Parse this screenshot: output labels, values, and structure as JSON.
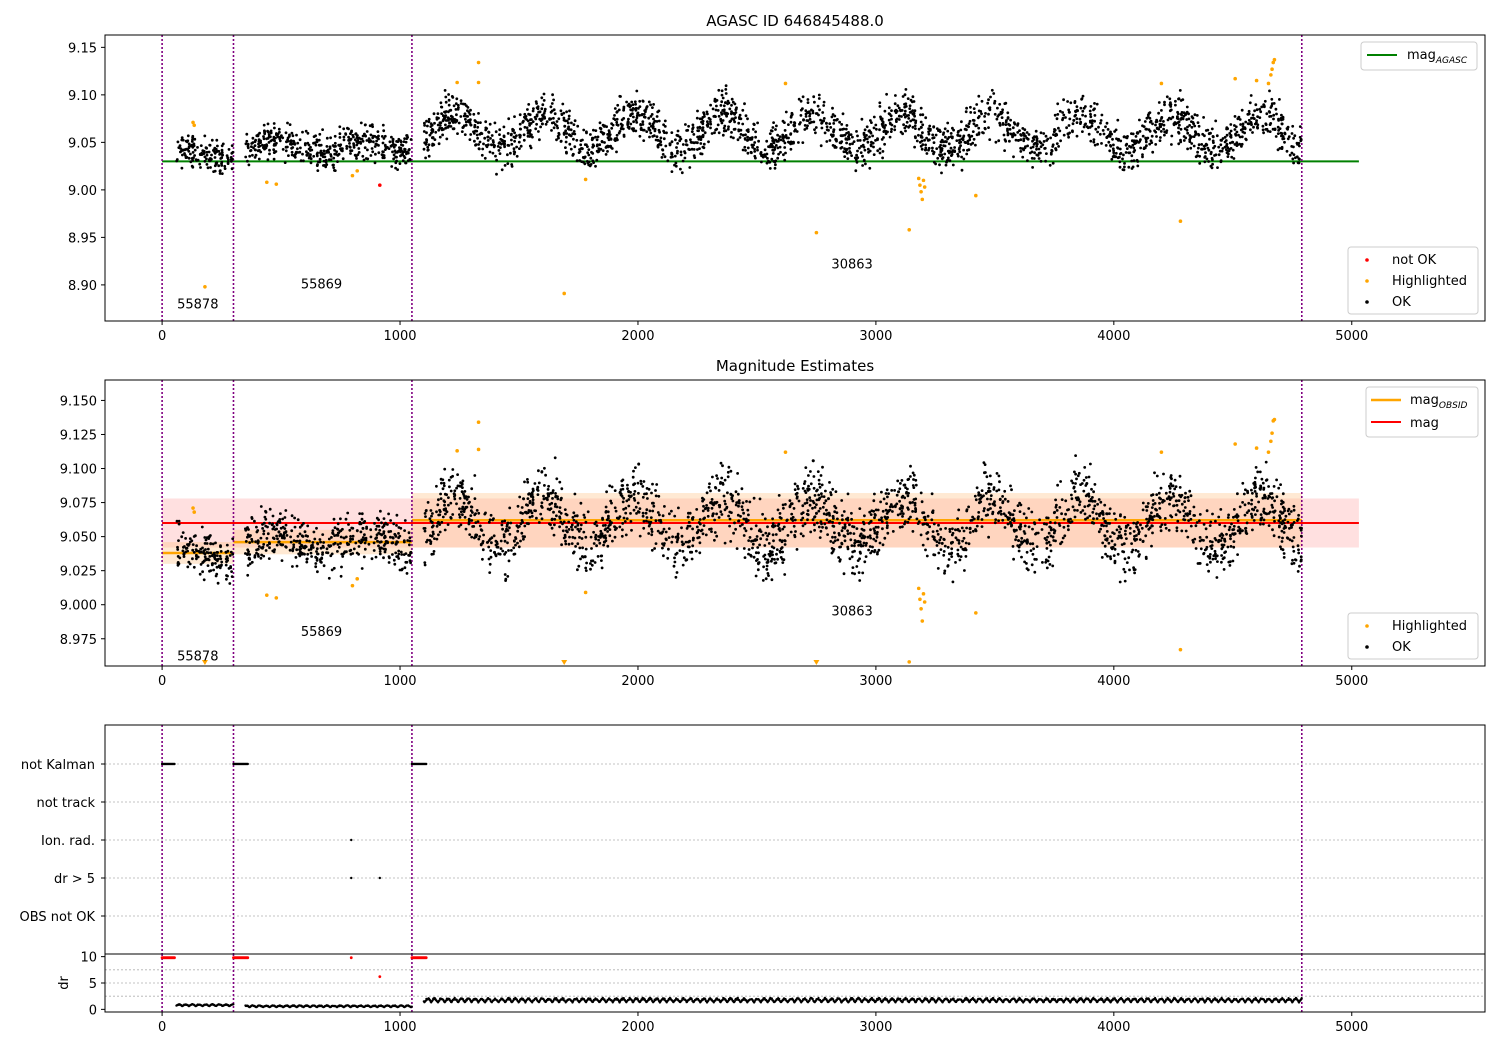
{
  "colors": {
    "ok": "#000000",
    "highlight": "#ffa500",
    "notok": "#ff0000",
    "agasc_line": "#008000",
    "mag_line": "#ff0000",
    "obsid_line": "#ffa500",
    "obs_boundary": "#800080",
    "band_red": "#ff9999",
    "band_orange": "#ffc080"
  },
  "chart_data": [
    {
      "type": "scatter",
      "title": "AGASC ID 646845488.0",
      "xlim": [
        -240,
        5560
      ],
      "ylim": [
        8.862,
        9.163
      ],
      "xticks": [
        "0",
        "1000",
        "2000",
        "3000",
        "4000",
        "5000"
      ],
      "yticks": [
        "8.90",
        "8.95",
        "9.00",
        "9.05",
        "9.10",
        "9.15"
      ],
      "grid": false,
      "legends": [
        {
          "placement": "top-right",
          "entries": [
            "mag_AGASC"
          ],
          "entry_main": "mag",
          "entry_sub": "AGASC"
        },
        {
          "placement": "lower-right",
          "entries": [
            "not OK",
            "Highlighted",
            "OK"
          ]
        }
      ],
      "mag_agasc": 9.03,
      "obs_boundaries": [
        0,
        300,
        1050,
        4790
      ],
      "obs_labels": [
        {
          "text": "55878",
          "x": 150,
          "y": 8.875
        },
        {
          "text": "55869",
          "x": 670,
          "y": 8.896
        },
        {
          "text": "30863",
          "x": 2900,
          "y": 8.917
        }
      ],
      "ok_segments": [
        {
          "x": [
            60,
            300
          ],
          "level": 9.037,
          "noise": 0.008,
          "wave": 0.004
        },
        {
          "x": [
            350,
            1050
          ],
          "level": 9.046,
          "noise": 0.009,
          "wave": 0.006
        },
        {
          "x": [
            1100,
            4790
          ],
          "level": 9.061,
          "noise": 0.012,
          "wave": 0.018
        }
      ],
      "highlighted": [
        {
          "x": 130,
          "y": 9.071
        },
        {
          "x": 135,
          "y": 9.068
        },
        {
          "x": 180,
          "y": 8.898
        },
        {
          "x": 440,
          "y": 9.008
        },
        {
          "x": 480,
          "y": 9.006
        },
        {
          "x": 800,
          "y": 9.015
        },
        {
          "x": 820,
          "y": 9.02
        },
        {
          "x": 1240,
          "y": 9.113
        },
        {
          "x": 1330,
          "y": 9.134
        },
        {
          "x": 1330,
          "y": 9.113
        },
        {
          "x": 1690,
          "y": 8.891
        },
        {
          "x": 1780,
          "y": 9.011
        },
        {
          "x": 2620,
          "y": 9.112
        },
        {
          "x": 2750,
          "y": 8.955
        },
        {
          "x": 3140,
          "y": 8.958
        },
        {
          "x": 3180,
          "y": 9.012
        },
        {
          "x": 3185,
          "y": 9.005
        },
        {
          "x": 3190,
          "y": 8.998
        },
        {
          "x": 3195,
          "y": 8.99
        },
        {
          "x": 3200,
          "y": 9.01
        },
        {
          "x": 3205,
          "y": 9.003
        },
        {
          "x": 3420,
          "y": 8.994
        },
        {
          "x": 4200,
          "y": 9.112
        },
        {
          "x": 4280,
          "y": 8.967
        },
        {
          "x": 4510,
          "y": 9.117
        },
        {
          "x": 4600,
          "y": 9.115
        },
        {
          "x": 4650,
          "y": 9.112
        },
        {
          "x": 4660,
          "y": 9.121
        },
        {
          "x": 4665,
          "y": 9.127
        },
        {
          "x": 4670,
          "y": 9.134
        },
        {
          "x": 4675,
          "y": 9.137
        }
      ],
      "not_ok": [
        {
          "x": 915,
          "y": 9.005
        }
      ]
    },
    {
      "type": "scatter",
      "title": "Magnitude Estimates",
      "xlim": [
        -240,
        5560
      ],
      "ylim": [
        8.955,
        9.165
      ],
      "xticks": [
        "0",
        "1000",
        "2000",
        "3000",
        "4000",
        "5000"
      ],
      "yticks": [
        "8.975",
        "9.000",
        "9.025",
        "9.050",
        "9.075",
        "9.100",
        "9.125",
        "9.150"
      ],
      "grid": false,
      "legends": [
        {
          "placement": "top-right",
          "entries": [
            "mag_OBSID",
            "mag"
          ],
          "entry_main": "mag",
          "entry_sub": "OBSID",
          "entry_2": "mag"
        },
        {
          "placement": "lower-right",
          "entries": [
            "Highlighted",
            "OK"
          ]
        }
      ],
      "mag": 9.06,
      "mag_band": [
        9.042,
        9.078
      ],
      "mag_band_x": [
        0,
        5030
      ],
      "mag_obsid": [
        {
          "x": [
            0,
            300
          ],
          "mag": 9.038,
          "band": [
            9.03,
            9.046
          ]
        },
        {
          "x": [
            300,
            1050
          ],
          "mag": 9.046,
          "band": [
            9.037,
            9.055
          ]
        },
        {
          "x": [
            1050,
            4790
          ],
          "mag": 9.062,
          "band": [
            9.042,
            9.082
          ]
        }
      ],
      "obs_boundaries": [
        0,
        300,
        1050,
        4790
      ],
      "obs_labels": [
        {
          "text": "55878",
          "x": 150,
          "y": 8.959
        },
        {
          "text": "55869",
          "x": 670,
          "y": 8.977
        },
        {
          "text": "30863",
          "x": 2900,
          "y": 8.992
        }
      ],
      "ok_segments": [
        {
          "x": [
            60,
            300
          ],
          "level": 9.037,
          "noise": 0.008,
          "wave": 0.004
        },
        {
          "x": [
            350,
            1050
          ],
          "level": 9.046,
          "noise": 0.009,
          "wave": 0.006
        },
        {
          "x": [
            1100,
            4790
          ],
          "level": 9.061,
          "noise": 0.012,
          "wave": 0.018
        }
      ],
      "highlighted": [
        {
          "x": 130,
          "y": 9.071
        },
        {
          "x": 135,
          "y": 9.068
        },
        {
          "x": 180,
          "y": 8.956
        },
        {
          "x": 440,
          "y": 9.007
        },
        {
          "x": 480,
          "y": 9.005
        },
        {
          "x": 800,
          "y": 9.014
        },
        {
          "x": 820,
          "y": 9.019
        },
        {
          "x": 1240,
          "y": 9.113
        },
        {
          "x": 1330,
          "y": 9.134
        },
        {
          "x": 1330,
          "y": 9.114
        },
        {
          "x": 1690,
          "y": 8.956
        },
        {
          "x": 1780,
          "y": 9.009
        },
        {
          "x": 2620,
          "y": 9.112
        },
        {
          "x": 2750,
          "y": 8.956
        },
        {
          "x": 3140,
          "y": 8.958
        },
        {
          "x": 3180,
          "y": 9.012
        },
        {
          "x": 3185,
          "y": 9.004
        },
        {
          "x": 3190,
          "y": 8.997
        },
        {
          "x": 3195,
          "y": 8.988
        },
        {
          "x": 3200,
          "y": 9.008
        },
        {
          "x": 3205,
          "y": 9.002
        },
        {
          "x": 3420,
          "y": 8.994
        },
        {
          "x": 4200,
          "y": 9.112
        },
        {
          "x": 4280,
          "y": 8.967
        },
        {
          "x": 4510,
          "y": 9.118
        },
        {
          "x": 4600,
          "y": 9.115
        },
        {
          "x": 4650,
          "y": 9.112
        },
        {
          "x": 4660,
          "y": 9.12
        },
        {
          "x": 4665,
          "y": 9.126
        },
        {
          "x": 4670,
          "y": 9.135
        },
        {
          "x": 4675,
          "y": 9.136
        }
      ]
    },
    {
      "type": "scatter",
      "title": "",
      "xlim": [
        -240,
        5560
      ],
      "categories": [
        "not Kalman",
        "not track",
        "Ion. rad.",
        "dr > 5",
        "OBS not OK"
      ],
      "obs_boundaries": [
        0,
        300,
        1050,
        4790
      ],
      "grid": true,
      "flags": [
        {
          "category": "not Kalman",
          "ranges": [
            [
              0,
              55
            ],
            [
              300,
              360
            ],
            [
              1050,
              1110
            ]
          ]
        },
        {
          "category": "Ion. rad.",
          "points": [
            795
          ]
        },
        {
          "category": "dr > 5",
          "points": [
            795,
            915
          ]
        }
      ]
    },
    {
      "type": "scatter",
      "title": "",
      "ylabel": "dr",
      "xlim": [
        -240,
        5560
      ],
      "ylim": [
        -0.5,
        10.5
      ],
      "xticks": [
        "0",
        "1000",
        "2000",
        "3000",
        "4000",
        "5000"
      ],
      "yticks": [
        "0",
        "5",
        "10"
      ],
      "grid": true,
      "obs_boundaries": [
        0,
        300,
        1050,
        4790
      ],
      "red_segments": [
        [
          0,
          55
        ],
        [
          300,
          360
        ],
        [
          1050,
          1110
        ]
      ],
      "red_points": [
        {
          "x": 795,
          "y": 9.8
        },
        {
          "x": 915,
          "y": 6.2
        }
      ],
      "black_segments": [
        {
          "x": [
            60,
            300
          ],
          "level": 0.6,
          "amp": 0.4
        },
        {
          "x": [
            350,
            1050
          ],
          "level": 0.4,
          "amp": 0.4
        },
        {
          "x": [
            1100,
            4790
          ],
          "level": 1.3,
          "amp": 0.9
        }
      ]
    }
  ]
}
